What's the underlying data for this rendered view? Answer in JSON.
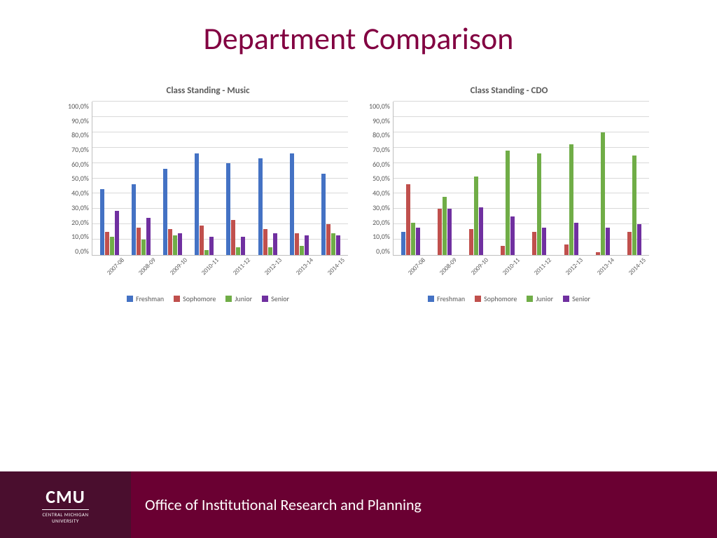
{
  "page": {
    "title": "Department Comparison",
    "background": "#ffffff"
  },
  "charts": [
    {
      "title": "Class Standing - Music",
      "type": "bar",
      "ylim": [
        0,
        100
      ],
      "ytick_step": 10,
      "ytick_labels": [
        "100,0%",
        "90,0%",
        "80,0%",
        "70,0%",
        "60,0%",
        "50,0%",
        "40,0%",
        "30,0%",
        "20,0%",
        "10,0%",
        "0,0%"
      ],
      "categories": [
        "2007-08",
        "2008-09",
        "2009-10",
        "2010-11",
        "2011-12",
        "2012-13",
        "2013-14",
        "2014-15"
      ],
      "series": [
        {
          "label": "Freshman",
          "color": "#4472c4",
          "values": [
            43,
            46,
            56,
            66,
            60,
            63,
            66,
            53
          ]
        },
        {
          "label": "Sophomore",
          "color": "#c0504d",
          "values": [
            15,
            18,
            17,
            19,
            23,
            17,
            14,
            20
          ]
        },
        {
          "label": "Junior",
          "color": "#70ad47",
          "values": [
            12,
            10,
            13,
            3,
            5,
            5,
            6,
            14
          ]
        },
        {
          "label": "Senior",
          "color": "#7030a0",
          "values": [
            29,
            24,
            14,
            12,
            12,
            14,
            13,
            13
          ]
        }
      ],
      "grid_color": "#d9d9d9",
      "axis_color": "#bfbfbf",
      "label_fontsize": 10,
      "title_fontsize": 13,
      "title_color": "#595959"
    },
    {
      "title": "Class Standing - CDO",
      "type": "bar",
      "ylim": [
        0,
        100
      ],
      "ytick_step": 10,
      "ytick_labels": [
        "100,0%",
        "90,0%",
        "80,0%",
        "70,0%",
        "60,0%",
        "50,0%",
        "40,0%",
        "30,0%",
        "20,0%",
        "10,0%",
        "0,0%"
      ],
      "categories": [
        "2007-08",
        "2008-09",
        "2009-10",
        "2010-11",
        "2011-12",
        "2012-13",
        "2013-14",
        "2014-15"
      ],
      "series": [
        {
          "label": "Freshman",
          "color": "#4472c4",
          "values": [
            15,
            0,
            0,
            0,
            0,
            0,
            0,
            0
          ]
        },
        {
          "label": "Sophomore",
          "color": "#c0504d",
          "values": [
            46,
            30,
            17,
            6,
            15,
            7,
            2,
            15
          ]
        },
        {
          "label": "Junior",
          "color": "#70ad47",
          "values": [
            21,
            38,
            51,
            68,
            66,
            72,
            80,
            65
          ]
        },
        {
          "label": "Senior",
          "color": "#7030a0",
          "values": [
            18,
            30,
            31,
            25,
            18,
            21,
            18,
            20
          ]
        }
      ],
      "grid_color": "#d9d9d9",
      "axis_color": "#bfbfbf",
      "label_fontsize": 10,
      "title_fontsize": 13,
      "title_color": "#595959"
    }
  ],
  "footer": {
    "logo_main": "CMU",
    "logo_line1": "CENTRAL MICHIGAN",
    "logo_line2": "UNIVERSITY",
    "left_bg": "#4a0e2e",
    "right_bg": "#6a0032",
    "text": "Office of Institutional Research and Planning",
    "text_color": "#ffffff"
  }
}
